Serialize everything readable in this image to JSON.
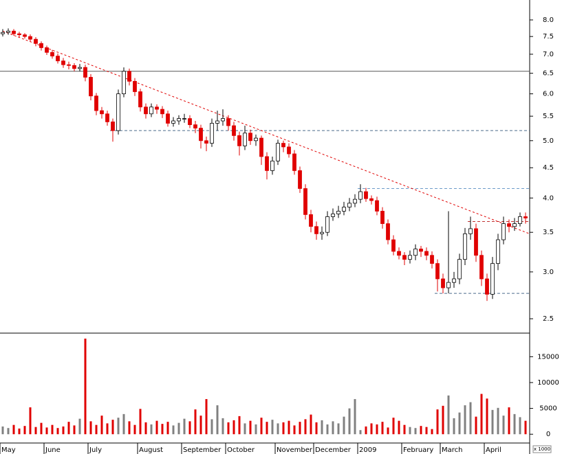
{
  "chart_data": [
    {
      "type": "candlestick",
      "categories": [
        "May",
        null,
        null,
        null,
        null,
        null,
        null,
        null,
        "June",
        null,
        null,
        null,
        null,
        null,
        null,
        null,
        "July",
        null,
        null,
        null,
        null,
        null,
        null,
        null,
        null,
        "August",
        null,
        null,
        null,
        null,
        null,
        null,
        null,
        "September",
        null,
        null,
        null,
        null,
        null,
        null,
        null,
        "October",
        null,
        null,
        null,
        null,
        null,
        null,
        null,
        null,
        "November",
        null,
        null,
        null,
        null,
        null,
        null,
        "December",
        null,
        null,
        null,
        null,
        null,
        null,
        null,
        "2009",
        null,
        null,
        null,
        null,
        null,
        null,
        null,
        "February",
        null,
        null,
        null,
        null,
        null,
        null,
        "March",
        null,
        null,
        null,
        null,
        null,
        null,
        null,
        "April",
        null,
        null,
        null,
        null,
        null,
        null,
        null
      ],
      "open": [
        7.58,
        7.62,
        7.66,
        7.58,
        7.55,
        7.5,
        7.42,
        7.3,
        7.18,
        7.05,
        6.95,
        6.82,
        6.72,
        6.7,
        6.62,
        6.65,
        6.4,
        5.95,
        5.62,
        5.55,
        5.38,
        5.2,
        6.0,
        6.55,
        6.3,
        6.05,
        5.7,
        5.55,
        5.7,
        5.65,
        5.55,
        5.35,
        5.4,
        5.45,
        5.45,
        5.32,
        5.25,
        5.0,
        4.95,
        5.35,
        5.4,
        5.45,
        5.3,
        5.1,
        4.9,
        5.15,
        5.0,
        5.05,
        4.7,
        4.45,
        4.62,
        4.95,
        4.88,
        4.75,
        4.45,
        4.15,
        3.75,
        3.58,
        3.48,
        3.5,
        3.72,
        3.76,
        3.8,
        3.86,
        3.92,
        3.98,
        4.1,
        3.99,
        3.96,
        3.8,
        3.62,
        3.4,
        3.25,
        3.2,
        3.15,
        3.2,
        3.28,
        3.25,
        3.2,
        3.1,
        2.92,
        2.82,
        2.88,
        2.92,
        3.15,
        3.48,
        3.55,
        3.2,
        2.92,
        2.75,
        3.1,
        3.4,
        3.62,
        3.58,
        3.62,
        3.72
      ],
      "high": [
        7.72,
        7.74,
        7.72,
        7.64,
        7.6,
        7.56,
        7.48,
        7.36,
        7.24,
        7.12,
        7.02,
        6.9,
        6.8,
        6.76,
        6.74,
        6.72,
        6.48,
        6.02,
        5.7,
        5.62,
        5.45,
        6.1,
        6.65,
        6.62,
        6.38,
        6.12,
        5.78,
        5.78,
        5.76,
        5.72,
        5.62,
        5.48,
        5.52,
        5.55,
        5.52,
        5.4,
        5.32,
        5.08,
        5.45,
        5.62,
        5.65,
        5.52,
        5.38,
        5.18,
        5.3,
        5.22,
        5.12,
        5.1,
        4.78,
        4.7,
        5.02,
        5.0,
        4.95,
        4.82,
        4.52,
        4.22,
        3.82,
        3.65,
        3.58,
        3.8,
        3.84,
        3.88,
        3.94,
        4.0,
        4.06,
        4.22,
        4.16,
        4.04,
        4.02,
        3.86,
        3.68,
        3.46,
        3.3,
        3.24,
        3.26,
        3.34,
        3.32,
        3.3,
        3.25,
        3.15,
        2.98,
        3.8,
        3.0,
        3.22,
        3.56,
        3.72,
        3.62,
        3.26,
        2.98,
        3.18,
        3.48,
        3.72,
        3.68,
        3.7,
        3.78,
        3.78
      ],
      "low": [
        7.5,
        7.55,
        7.52,
        7.48,
        7.44,
        7.36,
        7.22,
        7.1,
        6.98,
        6.88,
        6.75,
        6.64,
        6.6,
        6.55,
        6.55,
        6.3,
        5.85,
        5.52,
        5.45,
        5.3,
        4.98,
        5.12,
        5.92,
        6.2,
        5.95,
        5.6,
        5.45,
        5.48,
        5.55,
        5.46,
        5.28,
        5.28,
        5.32,
        5.36,
        5.25,
        5.15,
        4.85,
        4.8,
        4.88,
        5.2,
        5.3,
        5.2,
        5.0,
        4.72,
        4.82,
        4.92,
        4.9,
        4.55,
        4.3,
        4.38,
        4.55,
        4.78,
        4.68,
        4.38,
        4.08,
        3.68,
        3.5,
        3.4,
        3.4,
        3.45,
        3.66,
        3.7,
        3.74,
        3.8,
        3.86,
        3.92,
        3.94,
        3.9,
        3.74,
        3.55,
        3.34,
        3.2,
        3.15,
        3.08,
        3.1,
        3.14,
        3.18,
        3.14,
        3.04,
        2.78,
        2.76,
        2.76,
        2.82,
        2.86,
        3.08,
        3.4,
        3.12,
        2.84,
        2.68,
        2.7,
        3.02,
        3.34,
        3.5,
        3.52,
        3.58,
        3.62
      ],
      "close": [
        7.62,
        7.66,
        7.58,
        7.55,
        7.5,
        7.42,
        7.3,
        7.18,
        7.05,
        6.95,
        6.82,
        6.72,
        6.7,
        6.62,
        6.65,
        6.4,
        5.95,
        5.62,
        5.55,
        5.38,
        5.2,
        6.0,
        6.55,
        6.3,
        6.05,
        5.7,
        5.55,
        5.7,
        5.65,
        5.55,
        5.35,
        5.4,
        5.45,
        5.45,
        5.32,
        5.25,
        5.0,
        4.95,
        5.35,
        5.4,
        5.45,
        5.3,
        5.1,
        4.9,
        5.15,
        5.0,
        5.05,
        4.7,
        4.45,
        4.62,
        4.95,
        4.88,
        4.75,
        4.45,
        4.15,
        3.75,
        3.58,
        3.48,
        3.5,
        3.72,
        3.76,
        3.8,
        3.86,
        3.92,
        3.98,
        4.1,
        3.99,
        3.96,
        3.8,
        3.62,
        3.4,
        3.25,
        3.2,
        3.15,
        3.2,
        3.28,
        3.25,
        3.2,
        3.1,
        2.92,
        2.82,
        2.88,
        2.92,
        3.15,
        3.48,
        3.55,
        3.2,
        2.92,
        2.75,
        3.1,
        3.4,
        3.62,
        3.58,
        3.62,
        3.72,
        3.7
      ],
      "up_color": "#ffffff",
      "down_color": "#e00000",
      "log_scale": true,
      "ylim": [
        2.364,
        8.645
      ],
      "yticks": [
        2.5,
        {
          "value": 3,
          "label": "3.0"
        },
        3.5,
        {
          "value": 4,
          "label": "4.0"
        },
        4.5,
        {
          "value": 5,
          "label": "5.0"
        },
        5.5,
        {
          "value": 6,
          "label": "6.0"
        },
        6.5,
        {
          "value": 7,
          "label": "7.0"
        },
        7.5,
        {
          "value": 8,
          "label": "8.0"
        }
      ],
      "hlines": [
        {
          "value": 6.55,
          "start": 0,
          "color": "#555555",
          "dashed": false
        },
        {
          "value": 5.2,
          "start": 20,
          "color": "#4a6a8a",
          "dashed": true
        },
        {
          "value": 4.15,
          "start": 65,
          "color": "#6a9ac8",
          "dashed": true
        },
        {
          "value": 3.65,
          "start": 85,
          "color": "#c03030",
          "dashed": true
        },
        {
          "value": 2.76,
          "start": 79,
          "color": "#4a6a8a",
          "dashed": true
        }
      ],
      "trendline": {
        "start": 0,
        "end": 96,
        "values": [
          7.66,
          3.48
        ],
        "color": "#e00000"
      }
    },
    {
      "type": "bar",
      "values": [
        1500,
        1200,
        1800,
        1100,
        1600,
        5200,
        1400,
        2200,
        1300,
        1800,
        1200,
        1500,
        2400,
        1700,
        3000,
        18500,
        2500,
        1800,
        3600,
        2100,
        2800,
        3200,
        3900,
        2500,
        1800,
        4900,
        2300,
        1900,
        2600,
        2000,
        2400,
        1700,
        2200,
        3000,
        2500,
        4800,
        3600,
        6800,
        2900,
        5600,
        3100,
        2300,
        2700,
        3500,
        2100,
        2600,
        1900,
        3200,
        2400,
        2800,
        2100,
        2300,
        2600,
        1700,
        2400,
        2900,
        3800,
        2300,
        2700,
        1900,
        2500,
        2100,
        3400,
        5000,
        6800,
        800,
        1500,
        2100,
        1900,
        2400,
        1300,
        3200,
        2600,
        1800,
        1400,
        1200,
        1600,
        1400,
        1000,
        4800,
        5500,
        7500,
        3100,
        4200,
        5600,
        6200,
        3400,
        7800,
        6900,
        4700,
        5100,
        3600,
        5200,
        3900,
        3300,
        2600
      ],
      "up_color": "#808080",
      "down_color": "#e00000",
      "ylim": [
        -1700,
        19300
      ],
      "yticks": [
        0,
        5000,
        10000,
        15000
      ],
      "unit_label": "x 1000"
    }
  ]
}
